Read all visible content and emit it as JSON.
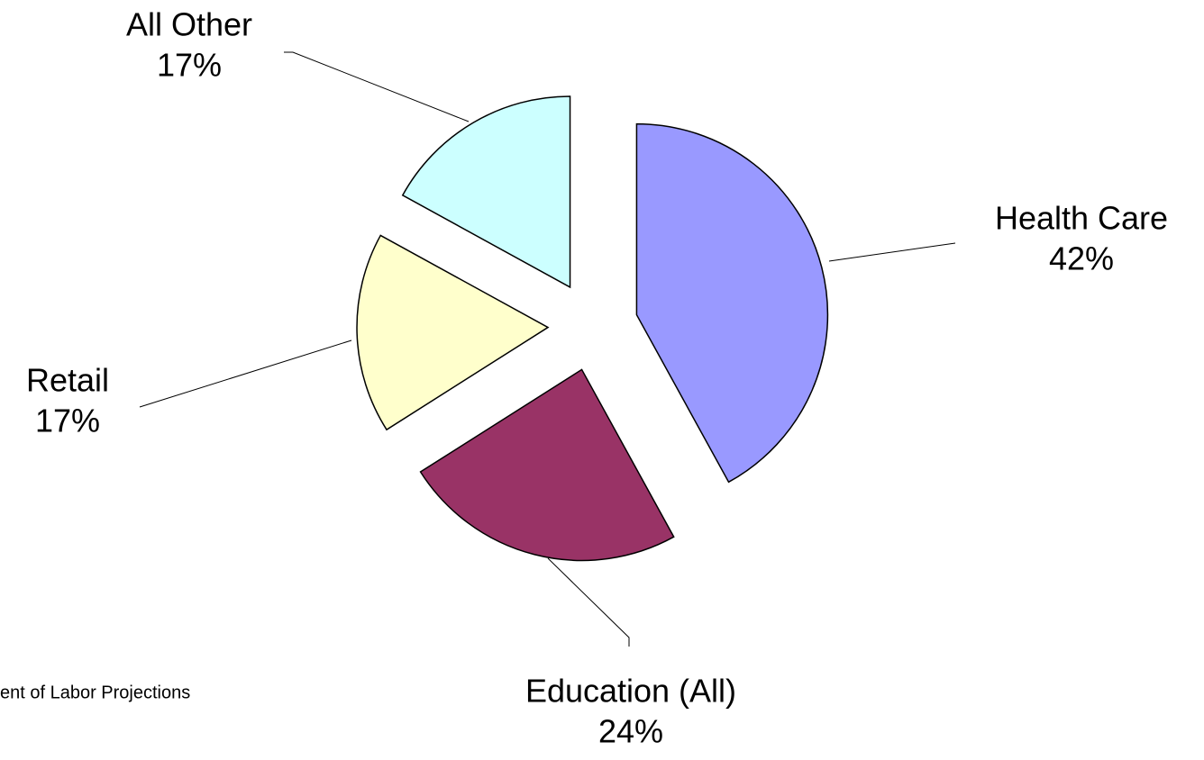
{
  "chart_data": {
    "type": "pie",
    "categories": [
      "Health Care",
      "Education (All)",
      "Retail",
      "All Other"
    ],
    "values": [
      42,
      24,
      17,
      17
    ],
    "value_labels": [
      "42%",
      "24%",
      "17%",
      "17%"
    ],
    "colors": [
      "#9999ff",
      "#993366",
      "#ffffcc",
      "#ccffff"
    ],
    "exploded": true,
    "note": "ent of Labor Projections"
  }
}
